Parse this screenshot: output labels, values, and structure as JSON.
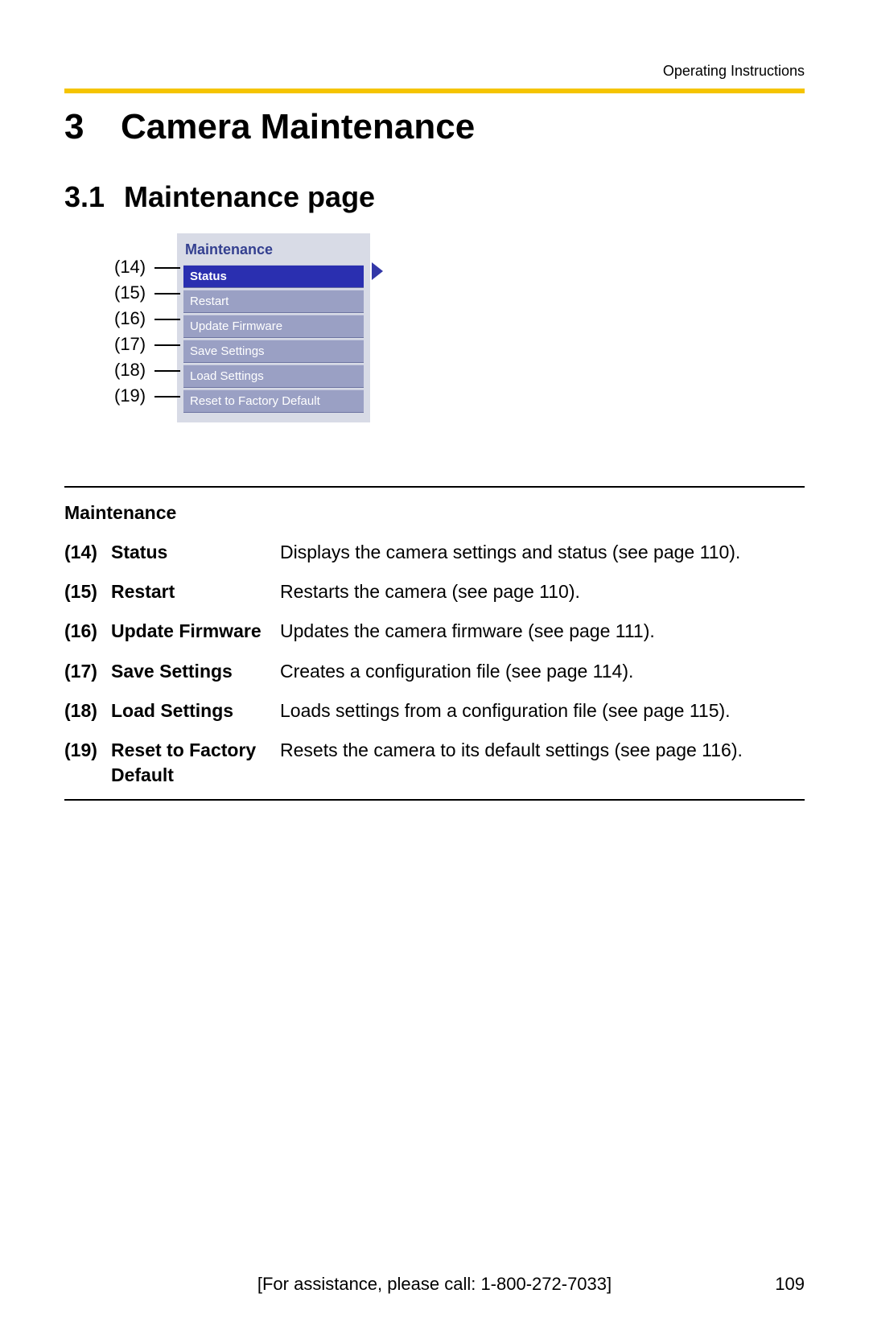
{
  "header": {
    "doc_title": "Operating Instructions"
  },
  "heading1": {
    "num": "3",
    "text": "Camera Maintenance"
  },
  "heading2": {
    "num": "3.1",
    "text": "Maintenance page"
  },
  "menu": {
    "panel_bg": "#d8dbe6",
    "title": "Maintenance",
    "title_color": "#344090",
    "item_bg": "#9aa0c4",
    "item_selected_bg": "#2a2fb0",
    "arrow_color": "#3338a8",
    "items": [
      {
        "callout": "(14)",
        "label": "Status",
        "selected": true
      },
      {
        "callout": "(15)",
        "label": "Restart",
        "selected": false
      },
      {
        "callout": "(16)",
        "label": "Update Firmware",
        "selected": false
      },
      {
        "callout": "(17)",
        "label": "Save Settings",
        "selected": false
      },
      {
        "callout": "(18)",
        "label": "Load Settings",
        "selected": false
      },
      {
        "callout": "(19)",
        "label": "Reset to Factory Default",
        "selected": false
      }
    ]
  },
  "table": {
    "title": "Maintenance",
    "rows": [
      {
        "num": "(14)",
        "name": "Status",
        "desc": "Displays the camera settings and status (see page 110)."
      },
      {
        "num": "(15)",
        "name": "Restart",
        "desc": "Restarts the camera (see page 110)."
      },
      {
        "num": "(16)",
        "name": "Update Firmware",
        "desc": "Updates the camera firmware (see page 111)."
      },
      {
        "num": "(17)",
        "name": "Save Settings",
        "desc": "Creates a configuration file (see page 114)."
      },
      {
        "num": "(18)",
        "name": "Load Settings",
        "desc": "Loads settings from a configuration file (see page 115)."
      },
      {
        "num": "(19)",
        "name": "Reset to Factory Default",
        "desc": "Resets the camera to its default settings (see page 116)."
      }
    ]
  },
  "footer": {
    "assist": "[For assistance, please call: 1-800-272-7033]",
    "page": "109"
  },
  "colors": {
    "yellow_rule": "#f5c400",
    "black": "#000000"
  }
}
